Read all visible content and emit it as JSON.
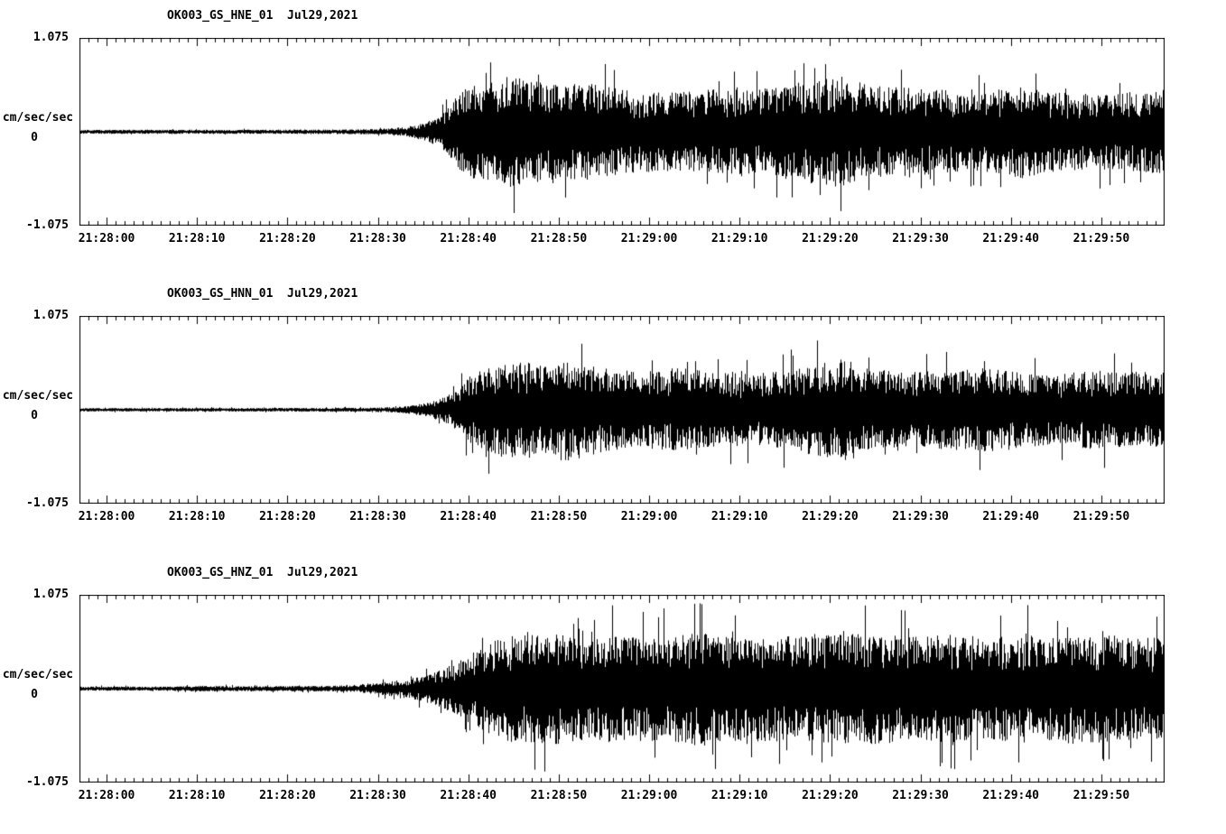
{
  "colors": {
    "trace": "#000000",
    "background": "#ffffff"
  },
  "chart_data": [
    {
      "type": "line",
      "chart_kind": "seismogram",
      "station_channel": "OK003_GS_HNE_01",
      "date": "Jul29,2021",
      "title": "OK003_GS_HNE_01  Jul29,2021",
      "xlabel": "",
      "ylabel": "cm/sec/sec",
      "ylim": [
        -1.075,
        1.075
      ],
      "y_max_label": "1.075",
      "y_zero_label": "0",
      "y_min_label": "-1.075",
      "x_tick_labels": [
        "21:28:00",
        "21:28:10",
        "21:28:20",
        "21:28:30",
        "21:28:40",
        "21:28:50",
        "21:29:00",
        "21:29:10",
        "21:29:20",
        "21:29:30",
        "21:29:40",
        "21:29:50"
      ],
      "x_span_sec": 120,
      "x_first_tick_sec": 3,
      "x_tick_interval_sec": 10,
      "x_minor_tick_sec": 1,
      "grid": false,
      "legend": false,
      "peak_probability": 0.04,
      "peak_factor": 1.5,
      "seed": 101,
      "envelope_t_sec": [
        0,
        20,
        30,
        33,
        36,
        38,
        40,
        42,
        44,
        47,
        50,
        53,
        56,
        60,
        65,
        70,
        75,
        78,
        81,
        84,
        87,
        90,
        95,
        100,
        104,
        108,
        112,
        116,
        120
      ],
      "envelope_amp": [
        0.022,
        0.022,
        0.025,
        0.03,
        0.05,
        0.09,
        0.18,
        0.42,
        0.52,
        0.6,
        0.55,
        0.5,
        0.52,
        0.45,
        0.42,
        0.45,
        0.45,
        0.5,
        0.55,
        0.6,
        0.5,
        0.48,
        0.45,
        0.42,
        0.5,
        0.42,
        0.4,
        0.42,
        0.45
      ]
    },
    {
      "type": "line",
      "chart_kind": "seismogram",
      "station_channel": "OK003_GS_HNN_01",
      "date": "Jul29,2021",
      "title": "OK003_GS_HNN_01  Jul29,2021",
      "xlabel": "",
      "ylabel": "cm/sec/sec",
      "ylim": [
        -1.075,
        1.075
      ],
      "y_max_label": "1.075",
      "y_zero_label": "0",
      "y_min_label": "-1.075",
      "x_tick_labels": [
        "21:28:00",
        "21:28:10",
        "21:28:20",
        "21:28:30",
        "21:28:40",
        "21:28:50",
        "21:29:00",
        "21:29:10",
        "21:29:20",
        "21:29:30",
        "21:29:40",
        "21:29:50"
      ],
      "x_span_sec": 120,
      "x_first_tick_sec": 3,
      "x_tick_interval_sec": 10,
      "x_minor_tick_sec": 1,
      "grid": false,
      "legend": false,
      "peak_probability": 0.04,
      "peak_factor": 1.5,
      "seed": 202,
      "envelope_t_sec": [
        0,
        25,
        32,
        35,
        37,
        39,
        41,
        43,
        45,
        48,
        51,
        54,
        58,
        62,
        66,
        70,
        74,
        78,
        82,
        85,
        88,
        92,
        96,
        100,
        104,
        108,
        112,
        116,
        120
      ],
      "envelope_amp": [
        0.018,
        0.02,
        0.022,
        0.03,
        0.05,
        0.09,
        0.16,
        0.35,
        0.45,
        0.55,
        0.5,
        0.55,
        0.45,
        0.4,
        0.45,
        0.4,
        0.38,
        0.42,
        0.5,
        0.55,
        0.42,
        0.4,
        0.42,
        0.45,
        0.4,
        0.38,
        0.42,
        0.4,
        0.42
      ]
    },
    {
      "type": "line",
      "chart_kind": "seismogram",
      "station_channel": "OK003_GS_HNZ_01",
      "date": "Jul29,2021",
      "title": "OK003_GS_HNZ_01  Jul29,2021",
      "xlabel": "",
      "ylabel": "cm/sec/sec",
      "ylim": [
        -1.075,
        1.075
      ],
      "y_max_label": "1.075",
      "y_zero_label": "0",
      "y_min_label": "-1.075",
      "x_tick_labels": [
        "21:28:00",
        "21:28:10",
        "21:28:20",
        "21:28:30",
        "21:28:40",
        "21:28:50",
        "21:29:00",
        "21:29:10",
        "21:29:20",
        "21:29:30",
        "21:29:40",
        "21:29:50"
      ],
      "x_span_sec": 120,
      "x_first_tick_sec": 3,
      "x_tick_interval_sec": 10,
      "x_minor_tick_sec": 1,
      "grid": false,
      "legend": false,
      "peak_probability": 0.06,
      "peak_factor": 1.55,
      "seed": 303,
      "envelope_t_sec": [
        0,
        10,
        14,
        18,
        25,
        30,
        33,
        36,
        38,
        40,
        42,
        44,
        46,
        48,
        52,
        56,
        60,
        64,
        68,
        72,
        76,
        80,
        84,
        88,
        92,
        96,
        100,
        104,
        108,
        112,
        116,
        120
      ],
      "envelope_amp": [
        0.022,
        0.022,
        0.032,
        0.026,
        0.028,
        0.035,
        0.06,
        0.1,
        0.14,
        0.2,
        0.3,
        0.42,
        0.52,
        0.58,
        0.6,
        0.55,
        0.58,
        0.55,
        0.6,
        0.55,
        0.58,
        0.55,
        0.58,
        0.6,
        0.55,
        0.58,
        0.55,
        0.58,
        0.55,
        0.58,
        0.55,
        0.55
      ]
    }
  ]
}
